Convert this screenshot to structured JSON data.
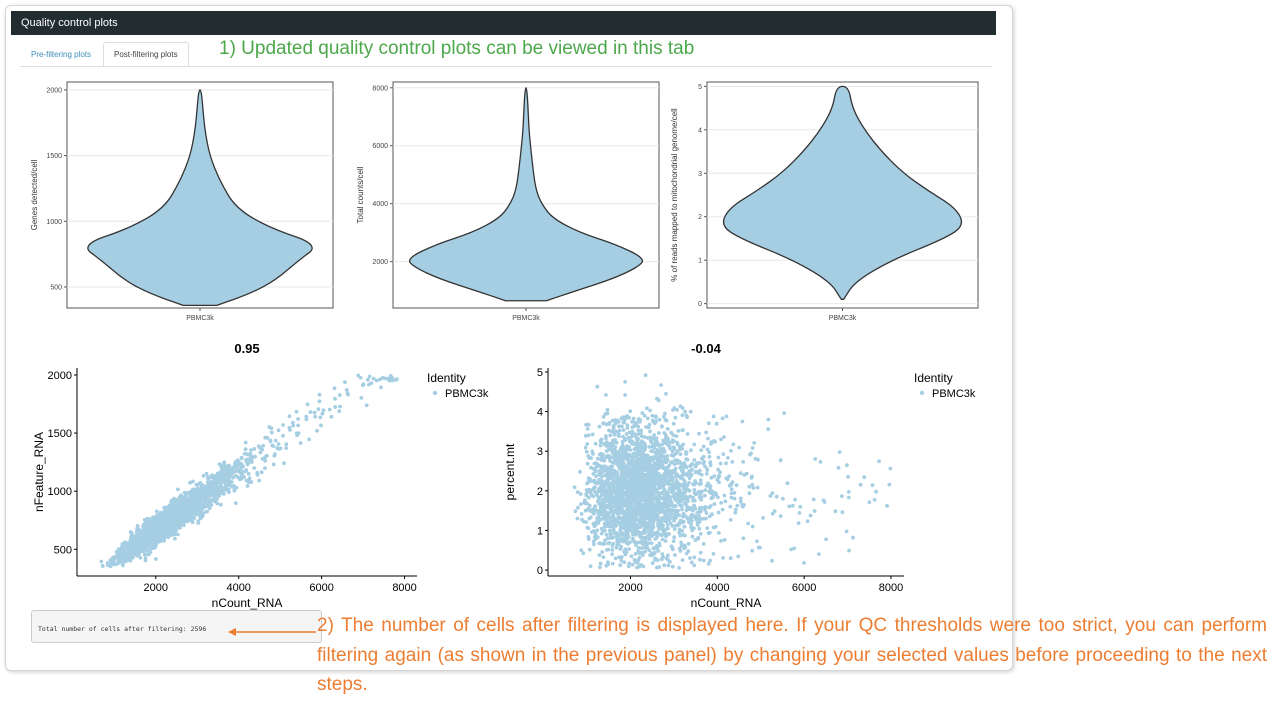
{
  "panel": {
    "title": "Quality control plots"
  },
  "tabs": [
    {
      "label": "Pre-filtering plots",
      "active": false
    },
    {
      "label": "Post-filtering plots",
      "active": true
    }
  ],
  "annotations": {
    "tab_note": "1) Updated quality control plots can be viewed in this tab",
    "cells_note": "2) The number of cells after filtering is displayed here. If your QC thresholds were too strict, you can perform filtering again (as shown in the previous panel) by changing your selected values before proceeding to the next steps."
  },
  "summary": {
    "text": "Total number of cells after filtering: 2596"
  },
  "colors": {
    "fill": "#a6cee3",
    "outline": "#333333",
    "annotation_green": "#4ca84b",
    "annotation_orange": "#ed7d31",
    "header_bg": "#222d32",
    "tab_link": "#3c8dbc"
  },
  "chart_data": [
    {
      "type": "violin",
      "category": "PBMC3k",
      "ylabel": "Genes detected/cell",
      "yticks": [
        500,
        1000,
        1500,
        2000
      ],
      "ylim": [
        340,
        2060
      ],
      "profile": [
        [
          360,
          0.14
        ],
        [
          450,
          0.42
        ],
        [
          550,
          0.63
        ],
        [
          700,
          0.82
        ],
        [
          820,
          1.0
        ],
        [
          950,
          0.58
        ],
        [
          1100,
          0.3
        ],
        [
          1300,
          0.17
        ],
        [
          1500,
          0.08
        ],
        [
          1700,
          0.04
        ],
        [
          1850,
          0.025
        ],
        [
          2000,
          0.01
        ]
      ]
    },
    {
      "type": "violin",
      "category": "PBMC3k",
      "ylabel": "Total counts/cell",
      "yticks": [
        2000,
        4000,
        6000,
        8000
      ],
      "ylim": [
        400,
        8200
      ],
      "profile": [
        [
          650,
          0.17
        ],
        [
          1000,
          0.42
        ],
        [
          1400,
          0.72
        ],
        [
          1800,
          0.93
        ],
        [
          2100,
          1.0
        ],
        [
          2600,
          0.75
        ],
        [
          3000,
          0.45
        ],
        [
          3500,
          0.22
        ],
        [
          4000,
          0.13
        ],
        [
          4500,
          0.08
        ],
        [
          5500,
          0.05
        ],
        [
          6500,
          0.025
        ],
        [
          7500,
          0.015
        ],
        [
          8000,
          0.005
        ]
      ]
    },
    {
      "type": "violin",
      "category": "PBMC3k",
      "ylabel": "% of reads mapped to mitochondrial genome/cell",
      "yticks": [
        0,
        1,
        2,
        3,
        4,
        5
      ],
      "ylim": [
        -0.1,
        5.1
      ],
      "profile": [
        [
          0.1,
          0.01
        ],
        [
          0.5,
          0.1
        ],
        [
          1.0,
          0.4
        ],
        [
          1.5,
          0.84
        ],
        [
          1.8,
          1.0
        ],
        [
          2.2,
          0.93
        ],
        [
          2.6,
          0.7
        ],
        [
          3.0,
          0.5
        ],
        [
          3.5,
          0.32
        ],
        [
          4.0,
          0.18
        ],
        [
          4.5,
          0.08
        ],
        [
          5.0,
          0.05
        ]
      ]
    },
    {
      "type": "scatter",
      "title": "0.95",
      "xlabel": "nCount_RNA",
      "ylabel": "nFeature_RNA",
      "xticks": [
        2000,
        4000,
        6000,
        8000
      ],
      "yticks": [
        500,
        1000,
        1500,
        2000
      ],
      "xlim": [
        100,
        8300
      ],
      "ylim": [
        270,
        2060
      ],
      "legend": {
        "title": "Identity",
        "items": [
          "PBMC3k"
        ],
        "placement": "right"
      },
      "n_points": 2596
    },
    {
      "type": "scatter",
      "title": "-0.04",
      "xlabel": "nCount_RNA",
      "ylabel": "percent.mt",
      "xticks": [
        2000,
        4000,
        6000,
        8000
      ],
      "yticks": [
        0,
        1,
        2,
        3,
        4,
        5
      ],
      "xlim": [
        100,
        8300
      ],
      "ylim": [
        -0.15,
        5.1
      ],
      "legend": {
        "title": "Identity",
        "items": [
          "PBMC3k"
        ],
        "placement": "right"
      },
      "n_points": 2596
    }
  ]
}
